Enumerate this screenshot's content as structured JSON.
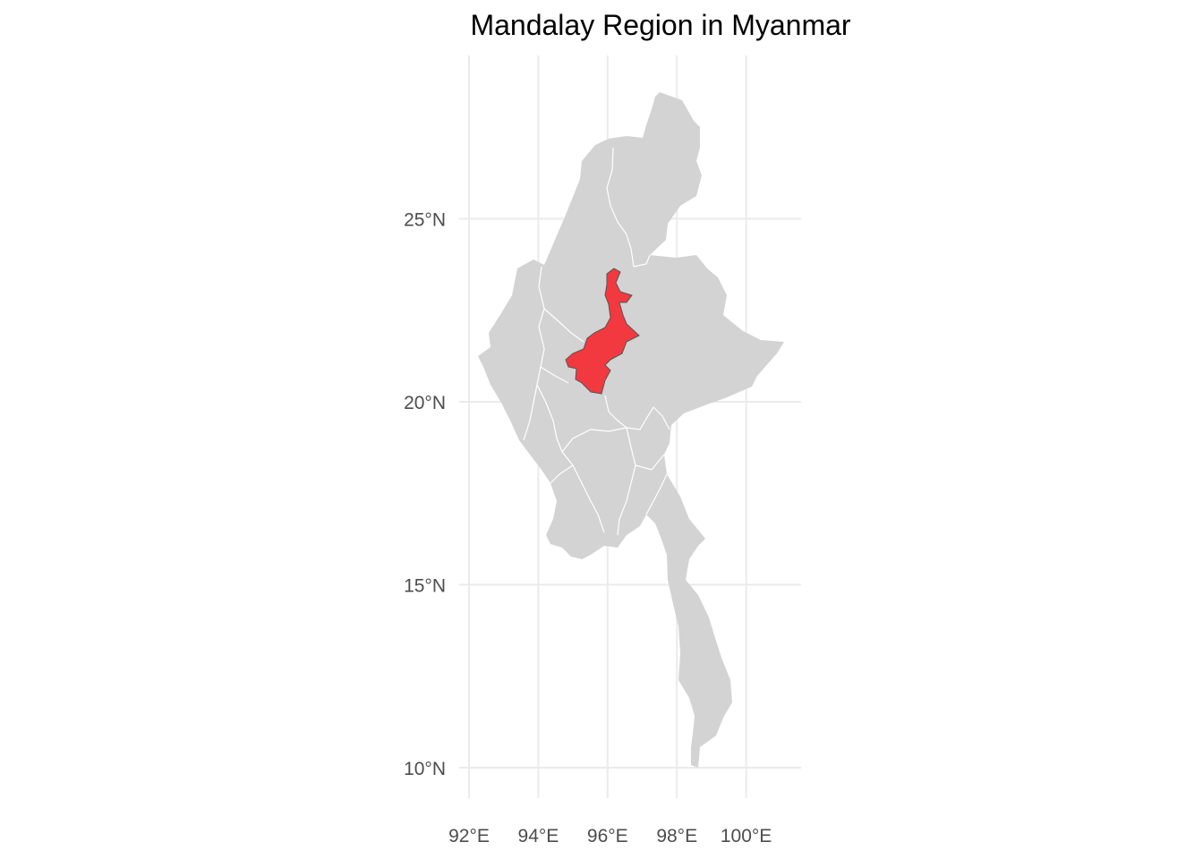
{
  "title": "Mandalay Region in Myanmar",
  "map": {
    "highlighted_region": "Mandalay Region",
    "country": "Myanmar",
    "lon_ticks": [
      {
        "value": 92,
        "label": "92°E"
      },
      {
        "value": 94,
        "label": "94°E"
      },
      {
        "value": 96,
        "label": "96°E"
      },
      {
        "value": 98,
        "label": "98°E"
      },
      {
        "value": 100,
        "label": "100°E"
      }
    ],
    "lat_ticks": [
      {
        "value": 10,
        "label": "10°N"
      },
      {
        "value": 15,
        "label": "15°N"
      },
      {
        "value": 20,
        "label": "20°N"
      },
      {
        "value": 25,
        "label": "25°N"
      }
    ],
    "lon_range": [
      91.9,
      101.5
    ],
    "lat_range": [
      9.2,
      29.7
    ],
    "grid": true,
    "colors": {
      "land": "#d3d3d3",
      "border": "#ffffff",
      "highlight": "#f2393f",
      "highlight_border": "#555555",
      "grid": "#ebebeb"
    }
  }
}
